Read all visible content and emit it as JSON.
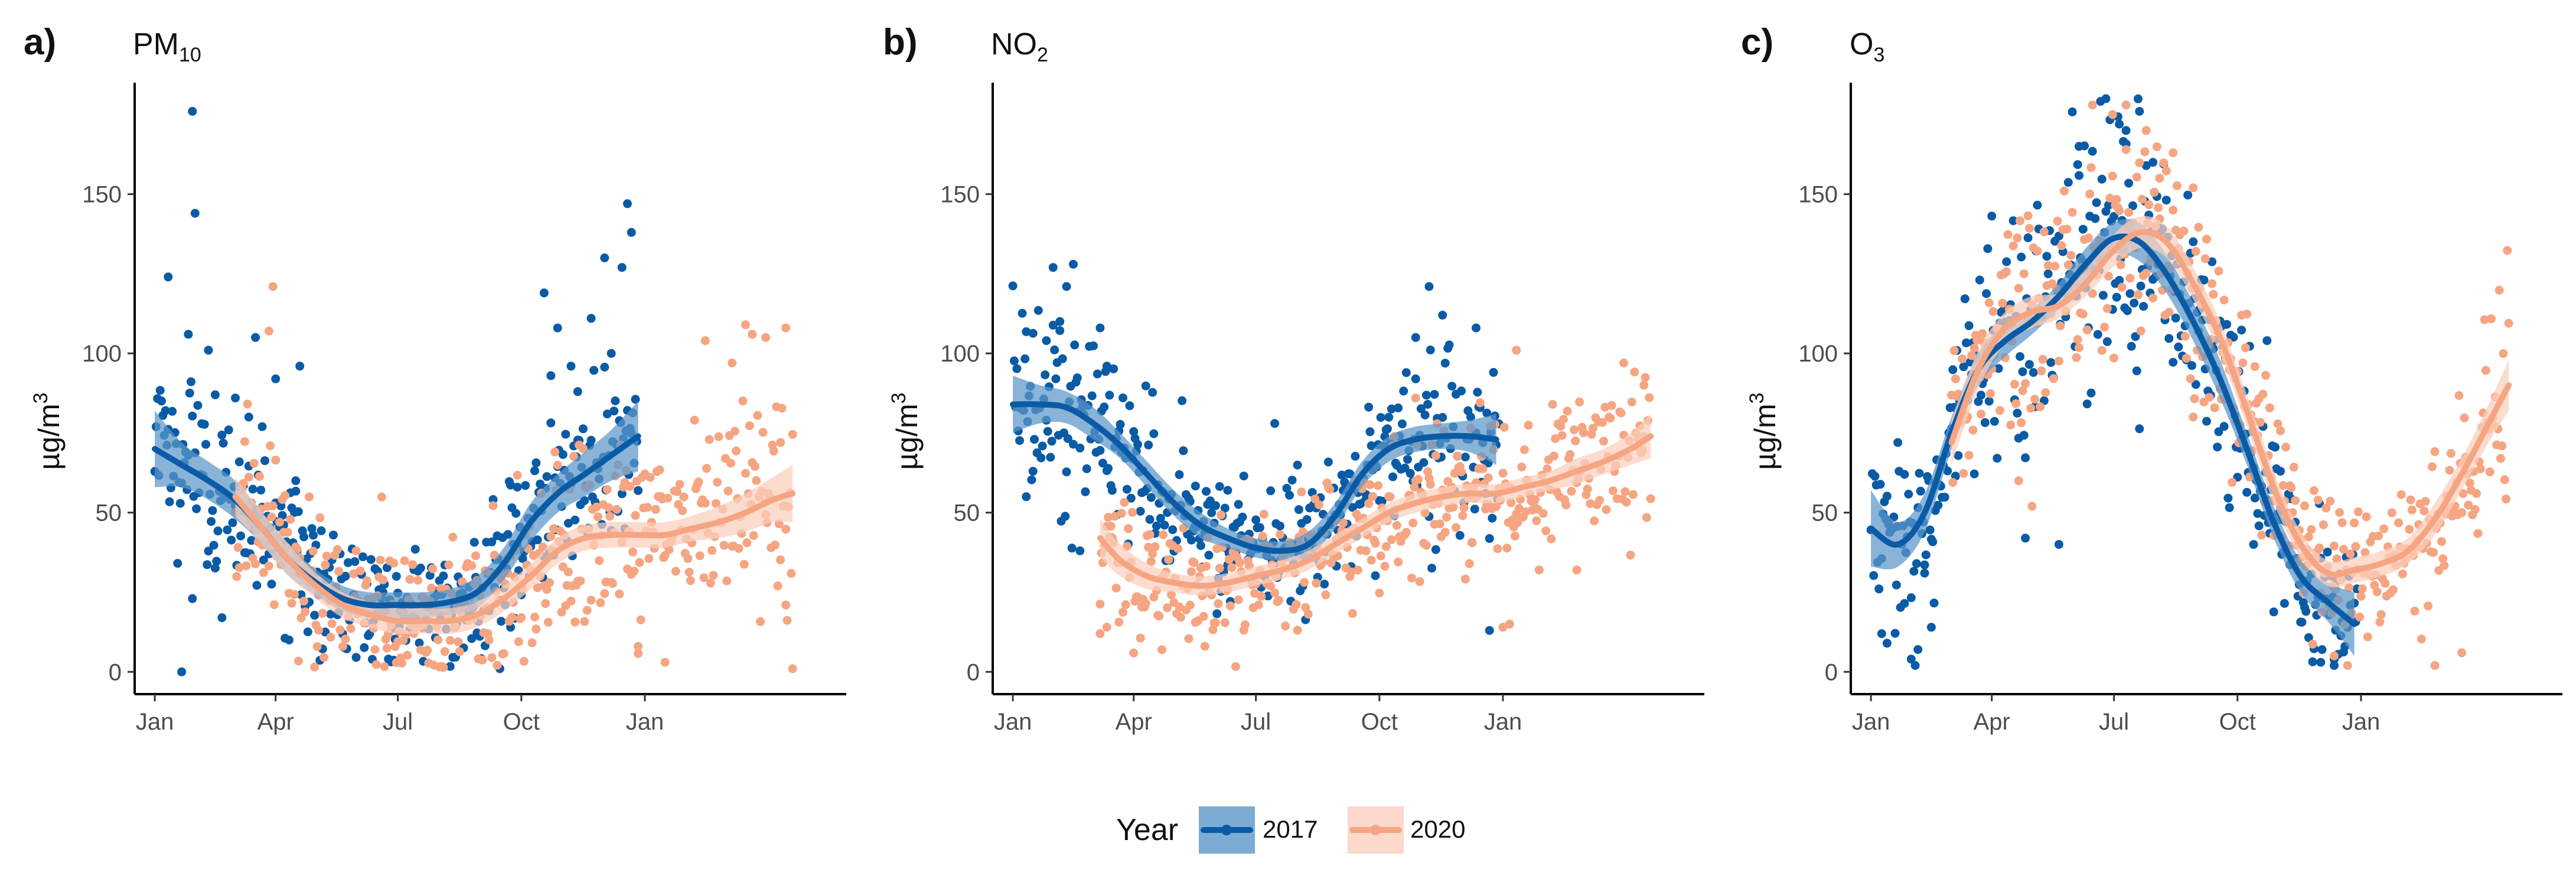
{
  "chart_data": [
    {
      "type": "scatter",
      "panel_label": "a)",
      "title": "PM10",
      "title_main": "PM",
      "title_sub": "10",
      "ylabel": "µg/m3",
      "ylabel_main": "µg/m",
      "ylabel_sup": "3",
      "ylim": [
        -7,
        185
      ],
      "yticks": [
        0,
        50,
        100,
        150
      ],
      "xlim": [
        -15,
        515
      ],
      "xticks": [
        {
          "day": 0,
          "label": "Jan"
        },
        {
          "day": 90,
          "label": "Apr"
        },
        {
          "day": 181,
          "label": "Jul"
        },
        {
          "day": 273,
          "label": "Oct"
        },
        {
          "day": 365,
          "label": "Jan"
        }
      ],
      "grid": false,
      "series": [
        {
          "name": "2017",
          "smooth": {
            "x": [
              0,
              20,
              40,
              60,
              80,
              100,
              120,
              140,
              160,
              180,
              200,
              220,
              240,
              260,
              280,
              300,
              320,
              340,
              360
            ],
            "y": [
              70,
              65,
              60,
              54,
              45,
              35,
              28,
              23,
              21,
              21,
              21,
              22,
              25,
              34,
              47,
              56,
              62,
              68,
              74
            ],
            "band_halfwidth": [
              12,
              7,
              6,
              6,
              5,
              5,
              4,
              4,
              4,
              4,
              4,
              4,
              5,
              5,
              6,
              6,
              7,
              8,
              11
            ]
          },
          "base_scatter": 15,
          "start_day": 0,
          "end_day": 360,
          "extra_points": [
            [
              10,
              124
            ],
            [
              25,
              106
            ],
            [
              28,
              176
            ],
            [
              30,
              144
            ],
            [
              40,
              101
            ],
            [
              45,
              87
            ],
            [
              60,
              86
            ],
            [
              70,
              80
            ],
            [
              75,
              105
            ],
            [
              80,
              77
            ],
            [
              90,
              92
            ],
            [
              105,
              60
            ],
            [
              108,
              96
            ],
            [
              20,
              0
            ],
            [
              28,
              23
            ],
            [
              50,
              17
            ],
            [
              290,
              119
            ],
            [
              300,
              108
            ],
            [
              310,
              96
            ],
            [
              325,
              111
            ],
            [
              335,
              130
            ],
            [
              348,
              127
            ],
            [
              352,
              147
            ],
            [
              355,
              138
            ],
            [
              340,
              100
            ],
            [
              315,
              88
            ],
            [
              295,
              93
            ],
            [
              270,
              58
            ],
            [
              265,
              14
            ],
            [
              257,
              1
            ]
          ]
        },
        {
          "name": "2020",
          "smooth": {
            "x": [
              60,
              80,
              100,
              120,
              140,
              160,
              180,
              200,
              220,
              240,
              260,
              280,
              300,
              320,
              340,
              360,
              380,
              400,
              420,
              440,
              460,
              475
            ],
            "y": [
              55,
              45,
              35,
              27,
              21,
              18,
              16,
              16,
              16,
              18,
              23,
              30,
              38,
              42,
              43,
              43,
              43,
              45,
              47,
              50,
              54,
              56
            ],
            "band_halfwidth": [
              6,
              5,
              5,
              4,
              4,
              4,
              4,
              4,
              4,
              4,
              4,
              4,
              4,
              4,
              4,
              4,
              4,
              4,
              5,
              6,
              7,
              9
            ]
          },
          "base_scatter": 18,
          "start_day": 60,
          "end_day": 475,
          "extra_points": [
            [
              88,
              121
            ],
            [
              85,
              107
            ],
            [
              440,
              109
            ],
            [
              445,
              106
            ],
            [
              470,
              108
            ],
            [
              455,
              105
            ],
            [
              410,
              104
            ],
            [
              430,
              97
            ],
            [
              466,
              72
            ],
            [
              458,
              55
            ],
            [
              470,
              21
            ],
            [
              475,
              1
            ],
            [
              380,
              3
            ],
            [
              360,
              8
            ]
          ]
        }
      ]
    },
    {
      "type": "scatter",
      "panel_label": "b)",
      "title": "NO2",
      "title_main": "NO",
      "title_sub": "2",
      "ylabel": "µg/m3",
      "ylabel_main": "µg/m",
      "ylabel_sup": "3",
      "ylim": [
        -7,
        185
      ],
      "yticks": [
        0,
        50,
        100,
        150
      ],
      "xlim": [
        -15,
        515
      ],
      "xticks": [
        {
          "day": 0,
          "label": "Jan"
        },
        {
          "day": 90,
          "label": "Apr"
        },
        {
          "day": 181,
          "label": "Jul"
        },
        {
          "day": 273,
          "label": "Oct"
        },
        {
          "day": 365,
          "label": "Jan"
        }
      ],
      "grid": false,
      "series": [
        {
          "name": "2017",
          "smooth": {
            "x": [
              0,
              20,
              40,
              60,
              80,
              100,
              120,
              140,
              160,
              180,
              200,
              220,
              240,
              260,
              280,
              300,
              320,
              340,
              360
            ],
            "y": [
              84,
              84,
              83,
              78,
              71,
              62,
              53,
              46,
              42,
              39,
              38,
              40,
              49,
              62,
              70,
              73,
              74,
              74,
              73
            ],
            "band_halfwidth": [
              9,
              6,
              5,
              5,
              4,
              4,
              4,
              4,
              3,
              3,
              3,
              4,
              4,
              4,
              4,
              4,
              4,
              5,
              8
            ]
          },
          "base_scatter": 14,
          "start_day": 0,
          "end_day": 362,
          "extra_points": [
            [
              30,
              127
            ],
            [
              40,
              121
            ],
            [
              45,
              128
            ],
            [
              35,
              110
            ],
            [
              25,
              104
            ],
            [
              15,
              63
            ],
            [
              10,
              55
            ],
            [
              65,
              108
            ],
            [
              70,
              96
            ],
            [
              50,
              38
            ],
            [
              310,
              121
            ],
            [
              320,
              112
            ],
            [
              345,
              108
            ],
            [
              300,
              105
            ],
            [
              355,
              13
            ],
            [
              195,
              78
            ],
            [
              160,
              57
            ]
          ]
        },
        {
          "name": "2020",
          "smooth": {
            "x": [
              65,
              80,
              100,
              120,
              140,
              160,
              180,
              200,
              220,
              240,
              260,
              280,
              300,
              320,
              340,
              360,
              380,
              400,
              420,
              440,
              460,
              475
            ],
            "y": [
              42,
              35,
              30,
              28,
              27,
              28,
              30,
              32,
              35,
              40,
              45,
              50,
              53,
              55,
              56,
              56,
              58,
              60,
              63,
              66,
              70,
              74
            ],
            "band_halfwidth": [
              6,
              5,
              4,
              3,
              3,
              3,
              3,
              3,
              3,
              3,
              3,
              3,
              3,
              3,
              3,
              3,
              3,
              3,
              4,
              4,
              5,
              7
            ]
          },
          "base_scatter": 13,
          "start_day": 65,
          "end_day": 475,
          "extra_points": [
            [
              65,
              12
            ],
            [
              70,
              14
            ],
            [
              375,
              101
            ],
            [
              455,
              97
            ],
            [
              470,
              90
            ],
            [
              370,
              15
            ],
            [
              365,
              14
            ],
            [
              420,
              32
            ],
            [
              340,
              34
            ],
            [
              300,
              86
            ]
          ]
        }
      ]
    },
    {
      "type": "scatter",
      "panel_label": "c)",
      "title": "O3",
      "title_main": "O",
      "title_sub": "3",
      "ylabel": "µg/m3",
      "ylabel_main": "µg/m",
      "ylabel_sup": "3",
      "ylim": [
        -7,
        185
      ],
      "yticks": [
        0,
        50,
        100,
        150
      ],
      "xlim": [
        -15,
        515
      ],
      "xticks": [
        {
          "day": 0,
          "label": "Jan"
        },
        {
          "day": 90,
          "label": "Apr"
        },
        {
          "day": 181,
          "label": "Jul"
        },
        {
          "day": 273,
          "label": "Oct"
        },
        {
          "day": 365,
          "label": "Jan"
        }
      ],
      "grid": false,
      "series": [
        {
          "name": "2017",
          "smooth": {
            "x": [
              0,
              20,
              40,
              60,
              80,
              100,
              120,
              140,
              160,
              180,
              200,
              220,
              240,
              260,
              280,
              300,
              320,
              340,
              360
            ],
            "y": [
              45,
              40,
              50,
              75,
              95,
              104,
              110,
              118,
              128,
              136,
              135,
              125,
              110,
              92,
              70,
              47,
              30,
              22,
              15
            ],
            "band_halfwidth": [
              12,
              7,
              6,
              5,
              5,
              5,
              4,
              4,
              5,
              5,
              6,
              6,
              6,
              6,
              5,
              5,
              5,
              6,
              10
            ]
          },
          "base_scatter": 16,
          "start_day": 0,
          "end_day": 362,
          "extra_points": [
            [
              8,
              12
            ],
            [
              12,
              9
            ],
            [
              30,
              4
            ],
            [
              33,
              2
            ],
            [
              35,
              7
            ],
            [
              45,
              14
            ],
            [
              40,
              31
            ],
            [
              20,
              72
            ],
            [
              25,
              62
            ],
            [
              155,
              165
            ],
            [
              175,
              180
            ],
            [
              185,
              172
            ],
            [
              200,
              176
            ],
            [
              210,
              160
            ],
            [
              190,
              170
            ],
            [
              115,
              42
            ],
            [
              140,
              40
            ],
            [
              285,
              40
            ],
            [
              305,
              63
            ],
            [
              345,
              2
            ],
            [
              335,
              3
            ],
            [
              295,
              104
            ]
          ]
        },
        {
          "name": "2020",
          "smooth": {
            "x": [
              60,
              80,
              100,
              120,
              140,
              160,
              180,
              200,
              220,
              240,
              260,
              280,
              300,
              320,
              340,
              360,
              380,
              400,
              420,
              440,
              460,
              475
            ],
            "y": [
              72,
              95,
              108,
              113,
              115,
              122,
              132,
              138,
              135,
              122,
              105,
              82,
              58,
              40,
              31,
              32,
              34,
              38,
              48,
              62,
              78,
              90
            ],
            "band_halfwidth": [
              7,
              6,
              5,
              5,
              4,
              4,
              5,
              5,
              5,
              5,
              5,
              5,
              5,
              4,
              4,
              4,
              4,
              4,
              5,
              5,
              6,
              8
            ]
          },
          "base_scatter": 15,
          "start_day": 60,
          "end_day": 475,
          "extra_points": [
            [
              165,
              178
            ],
            [
              180,
              175
            ],
            [
              190,
              178
            ],
            [
              205,
              170
            ],
            [
              225,
              163
            ],
            [
              215,
              155
            ],
            [
              240,
              152
            ],
            [
              120,
              52
            ],
            [
              110,
              60
            ],
            [
              355,
              2
            ],
            [
              345,
              5
            ],
            [
              420,
              2
            ],
            [
              440,
              6
            ]
          ]
        }
      ]
    }
  ],
  "legend": {
    "title": "Year",
    "entries": [
      {
        "label": "2017",
        "color": "#0a5ba6",
        "fill": "#5b97c9"
      },
      {
        "label": "2020",
        "color": "#f6a582",
        "fill": "#fbcfbd"
      }
    ]
  }
}
